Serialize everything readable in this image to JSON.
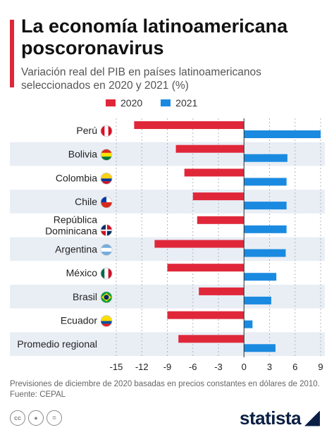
{
  "header": {
    "title": "La economía latinoamericana poscoronavirus",
    "subtitle": "Variación real del PIB en países latinoamericanos seleccionados en 2020 y 2021 (%)"
  },
  "footer": {
    "note_line1": "Previsiones de diciembre de 2020 basadas en precios constantes en dólares de 2010.",
    "note_line2": "Fuente: CEPAL",
    "brand": "statista",
    "license_icons": [
      "cc",
      "by",
      "nd"
    ]
  },
  "colors": {
    "series_2020": "#e0273a",
    "series_2021": "#1a8ae0",
    "band": "#e9eef5",
    "grid": "#b0b7c0"
  },
  "chart_data": {
    "type": "bar",
    "orientation": "horizontal",
    "title": "",
    "xlabel": "",
    "ylabel": "",
    "xlim": [
      -15,
      9
    ],
    "xticks": [
      -15,
      -12,
      -9,
      -6,
      -3,
      0,
      3,
      6,
      9
    ],
    "legend_position": "top",
    "categories": [
      "Perú",
      "Bolivia",
      "Colombia",
      "Chile",
      "República Dominicana",
      "Argentina",
      "México",
      "Brasil",
      "Ecuador",
      "Promedio regional"
    ],
    "category_lines": [
      [
        "Perú"
      ],
      [
        "Bolivia"
      ],
      [
        "Colombia"
      ],
      [
        "Chile"
      ],
      [
        "República",
        "Dominicana"
      ],
      [
        "Argentina"
      ],
      [
        "México"
      ],
      [
        "Brasil"
      ],
      [
        "Ecuador"
      ],
      [
        "Promedio regional"
      ]
    ],
    "flags": [
      "peru-flag-icon",
      "bolivia-flag-icon",
      "colombia-flag-icon",
      "chile-flag-icon",
      "dominican-republic-flag-icon",
      "argentina-flag-icon",
      "mexico-flag-icon",
      "brazil-flag-icon",
      "ecuador-flag-icon",
      ""
    ],
    "series": [
      {
        "name": "2020",
        "values": [
          -12.9,
          -8.0,
          -7.0,
          -6.0,
          -5.5,
          -10.5,
          -9.0,
          -5.3,
          -9.0,
          -7.7
        ]
      },
      {
        "name": "2021",
        "values": [
          9.0,
          5.1,
          5.0,
          5.0,
          5.0,
          4.9,
          3.8,
          3.2,
          1.0,
          3.7
        ]
      }
    ]
  }
}
